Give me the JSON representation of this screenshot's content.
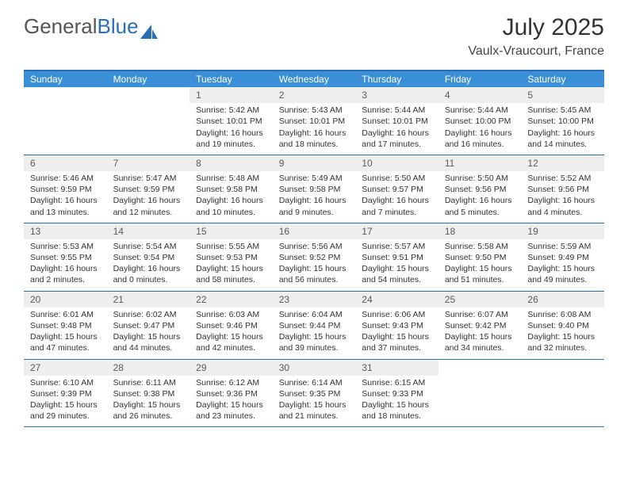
{
  "brand": {
    "part1": "General",
    "part2": "Blue"
  },
  "title": "July 2025",
  "location": "Vaulx-Vraucourt, France",
  "colors": {
    "header_bg": "#3b8fd6",
    "border": "#2a6fb5",
    "daynum_bg": "#eeeeee",
    "text": "#333333"
  },
  "day_names": [
    "Sunday",
    "Monday",
    "Tuesday",
    "Wednesday",
    "Thursday",
    "Friday",
    "Saturday"
  ],
  "weeks": [
    [
      null,
      null,
      {
        "n": "1",
        "sr": "5:42 AM",
        "ss": "10:01 PM",
        "dl": "16 hours and 19 minutes."
      },
      {
        "n": "2",
        "sr": "5:43 AM",
        "ss": "10:01 PM",
        "dl": "16 hours and 18 minutes."
      },
      {
        "n": "3",
        "sr": "5:44 AM",
        "ss": "10:01 PM",
        "dl": "16 hours and 17 minutes."
      },
      {
        "n": "4",
        "sr": "5:44 AM",
        "ss": "10:00 PM",
        "dl": "16 hours and 16 minutes."
      },
      {
        "n": "5",
        "sr": "5:45 AM",
        "ss": "10:00 PM",
        "dl": "16 hours and 14 minutes."
      }
    ],
    [
      {
        "n": "6",
        "sr": "5:46 AM",
        "ss": "9:59 PM",
        "dl": "16 hours and 13 minutes."
      },
      {
        "n": "7",
        "sr": "5:47 AM",
        "ss": "9:59 PM",
        "dl": "16 hours and 12 minutes."
      },
      {
        "n": "8",
        "sr": "5:48 AM",
        "ss": "9:58 PM",
        "dl": "16 hours and 10 minutes."
      },
      {
        "n": "9",
        "sr": "5:49 AM",
        "ss": "9:58 PM",
        "dl": "16 hours and 9 minutes."
      },
      {
        "n": "10",
        "sr": "5:50 AM",
        "ss": "9:57 PM",
        "dl": "16 hours and 7 minutes."
      },
      {
        "n": "11",
        "sr": "5:50 AM",
        "ss": "9:56 PM",
        "dl": "16 hours and 5 minutes."
      },
      {
        "n": "12",
        "sr": "5:52 AM",
        "ss": "9:56 PM",
        "dl": "16 hours and 4 minutes."
      }
    ],
    [
      {
        "n": "13",
        "sr": "5:53 AM",
        "ss": "9:55 PM",
        "dl": "16 hours and 2 minutes."
      },
      {
        "n": "14",
        "sr": "5:54 AM",
        "ss": "9:54 PM",
        "dl": "16 hours and 0 minutes."
      },
      {
        "n": "15",
        "sr": "5:55 AM",
        "ss": "9:53 PM",
        "dl": "15 hours and 58 minutes."
      },
      {
        "n": "16",
        "sr": "5:56 AM",
        "ss": "9:52 PM",
        "dl": "15 hours and 56 minutes."
      },
      {
        "n": "17",
        "sr": "5:57 AM",
        "ss": "9:51 PM",
        "dl": "15 hours and 54 minutes."
      },
      {
        "n": "18",
        "sr": "5:58 AM",
        "ss": "9:50 PM",
        "dl": "15 hours and 51 minutes."
      },
      {
        "n": "19",
        "sr": "5:59 AM",
        "ss": "9:49 PM",
        "dl": "15 hours and 49 minutes."
      }
    ],
    [
      {
        "n": "20",
        "sr": "6:01 AM",
        "ss": "9:48 PM",
        "dl": "15 hours and 47 minutes."
      },
      {
        "n": "21",
        "sr": "6:02 AM",
        "ss": "9:47 PM",
        "dl": "15 hours and 44 minutes."
      },
      {
        "n": "22",
        "sr": "6:03 AM",
        "ss": "9:46 PM",
        "dl": "15 hours and 42 minutes."
      },
      {
        "n": "23",
        "sr": "6:04 AM",
        "ss": "9:44 PM",
        "dl": "15 hours and 39 minutes."
      },
      {
        "n": "24",
        "sr": "6:06 AM",
        "ss": "9:43 PM",
        "dl": "15 hours and 37 minutes."
      },
      {
        "n": "25",
        "sr": "6:07 AM",
        "ss": "9:42 PM",
        "dl": "15 hours and 34 minutes."
      },
      {
        "n": "26",
        "sr": "6:08 AM",
        "ss": "9:40 PM",
        "dl": "15 hours and 32 minutes."
      }
    ],
    [
      {
        "n": "27",
        "sr": "6:10 AM",
        "ss": "9:39 PM",
        "dl": "15 hours and 29 minutes."
      },
      {
        "n": "28",
        "sr": "6:11 AM",
        "ss": "9:38 PM",
        "dl": "15 hours and 26 minutes."
      },
      {
        "n": "29",
        "sr": "6:12 AM",
        "ss": "9:36 PM",
        "dl": "15 hours and 23 minutes."
      },
      {
        "n": "30",
        "sr": "6:14 AM",
        "ss": "9:35 PM",
        "dl": "15 hours and 21 minutes."
      },
      {
        "n": "31",
        "sr": "6:15 AM",
        "ss": "9:33 PM",
        "dl": "15 hours and 18 minutes."
      },
      null,
      null
    ]
  ],
  "labels": {
    "sunrise": "Sunrise:",
    "sunset": "Sunset:",
    "daylight": "Daylight:"
  }
}
